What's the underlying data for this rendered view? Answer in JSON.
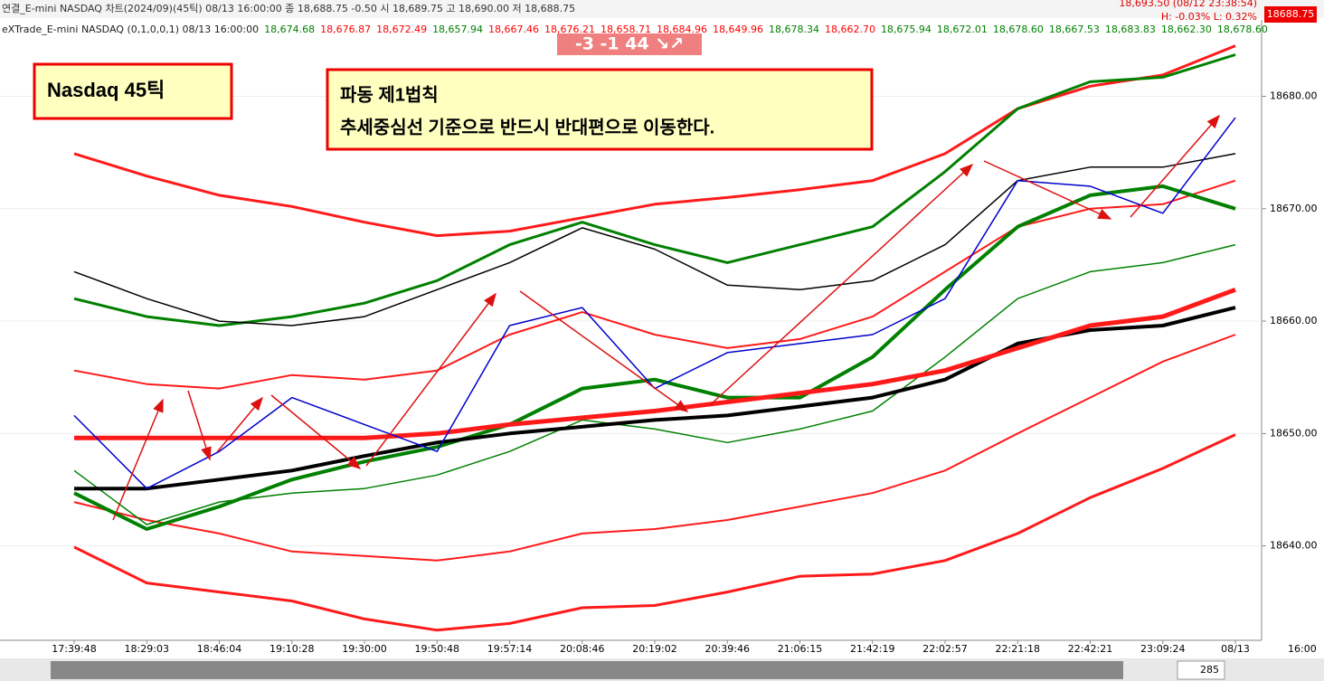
{
  "header": {
    "info_bar": "연결_E-mini NASDAQ 차트(2024/09)(45틱) 08/13 16:00:00  종 18,688.75  -0.50  시 18,689.75  고 18,690.00  저 18,688.75",
    "high_info": "18,693.50 (08/12 23:38:54)",
    "range_info": "H: -0.03%  L: 0.32%",
    "study_name": "eXTrade_E-mini NASDAQ  (0,1,0,0,1) 08/13 16:00:00",
    "study_values": [
      {
        "text": "18,674.68",
        "color": "#008000"
      },
      {
        "text": "18,676.87",
        "color": "#ff0000"
      },
      {
        "text": "18,672.49",
        "color": "#ff0000"
      },
      {
        "text": "18,657.94",
        "color": "#008000"
      },
      {
        "text": "18,667.46",
        "color": "#ff0000"
      },
      {
        "text": "18,676.21",
        "color": "#ff0000"
      },
      {
        "text": "18,658.71",
        "color": "#ff0000"
      },
      {
        "text": "18,684.96",
        "color": "#ff0000"
      },
      {
        "text": "18,649.96",
        "color": "#ff0000"
      },
      {
        "text": "18,678.34",
        "color": "#008000"
      },
      {
        "text": "18,662.70",
        "color": "#ff0000"
      },
      {
        "text": "18,675.94",
        "color": "#008000"
      },
      {
        "text": "18,672.01",
        "color": "#008000"
      },
      {
        "text": "18,678.60",
        "color": "#008000"
      },
      {
        "text": "18,667.53",
        "color": "#008000"
      },
      {
        "text": "18,683.83",
        "color": "#008000"
      },
      {
        "text": "18,662.30",
        "color": "#008000"
      },
      {
        "text": "18,678.60",
        "color": "#008000"
      }
    ],
    "badge": "-3  -1  44 ↘↗"
  },
  "annotations": {
    "label": "Nasdaq 45틱",
    "rule_title": "파동 제1법칙",
    "rule_text": "추세중심선 기준으로 반드시 반대편으로 이동한다."
  },
  "footer": {
    "time": "16:00",
    "count": "285"
  },
  "chart_data": {
    "type": "line",
    "last_price": "18688.75",
    "categories": [
      "17:39:48",
      "18:29:03",
      "18:46:04",
      "19:10:28",
      "19:30:00",
      "19:50:48",
      "19:57:14",
      "20:08:46",
      "20:19:02",
      "20:39:46",
      "21:06:15",
      "21:42:19",
      "22:02:57",
      "22:21:18",
      "22:42:21",
      "23:09:24",
      "08/13"
    ],
    "ylim": [
      18631.6,
      18686.8
    ],
    "yticks": [
      {
        "value": 18640,
        "label": "18640.00"
      },
      {
        "value": 18650,
        "label": "18650.00"
      },
      {
        "value": 18660,
        "label": "18660.00"
      },
      {
        "value": 18670,
        "label": "18670.00"
      },
      {
        "value": 18680,
        "label": "18680.00"
      }
    ],
    "series": [
      {
        "color": "#ff1a1a",
        "width": 3,
        "values": [
          18674.9,
          18672.9,
          18671.2,
          18670.2,
          18668.8,
          18667.6,
          18668.0,
          18669.2,
          18670.4,
          18671.0,
          18671.7,
          18672.5,
          18674.9,
          18678.9,
          18680.9,
          18681.9,
          18684.5
        ]
      },
      {
        "color": "#ff1a1a",
        "width": 3,
        "values": [
          18639.9,
          18636.7,
          18635.9,
          18635.1,
          18633.5,
          18632.5,
          18633.1,
          18634.5,
          18634.7,
          18635.9,
          18637.3,
          18637.5,
          18638.7,
          18641.1,
          18644.3,
          18646.9,
          18649.9
        ]
      },
      {
        "color": "#ff1a1a",
        "width": 2,
        "values": [
          18643.9,
          18642.3,
          18641.1,
          18639.5,
          18639.1,
          18638.7,
          18639.5,
          18641.1,
          18641.5,
          18642.3,
          18643.5,
          18644.7,
          18646.7,
          18650.0,
          18653.2,
          18656.4,
          18658.8
        ]
      },
      {
        "color": "#008000",
        "width": 3,
        "values": [
          18662.0,
          18660.4,
          18659.6,
          18660.4,
          18661.6,
          18663.6,
          18666.8,
          18668.8,
          18666.8,
          18665.2,
          18666.8,
          18668.4,
          18673.3,
          18678.9,
          18681.3,
          18681.7,
          18683.7
        ]
      },
      {
        "color": "#000000",
        "width": 1.5,
        "values": [
          18664.4,
          18662.0,
          18660.0,
          18659.6,
          18660.4,
          18662.8,
          18665.2,
          18668.3,
          18666.4,
          18663.2,
          18662.8,
          18663.6,
          18666.8,
          18672.5,
          18673.7,
          18673.7,
          18674.9
        ]
      },
      {
        "color": "#ff1a1a",
        "width": 2,
        "values": [
          18655.6,
          18654.4,
          18654.0,
          18655.2,
          18654.8,
          18655.6,
          18658.8,
          18660.8,
          18658.8,
          18657.6,
          18658.4,
          18660.4,
          18664.4,
          18668.4,
          18670.0,
          18670.4,
          18672.5
        ]
      },
      {
        "color": "#008000",
        "width": 1.5,
        "values": [
          18646.7,
          18641.9,
          18643.9,
          18644.7,
          18645.1,
          18646.3,
          18648.4,
          18651.2,
          18650.4,
          18649.2,
          18650.4,
          18652.0,
          18656.8,
          18662.0,
          18664.4,
          18665.2,
          18666.8
        ]
      },
      {
        "color": "#008000",
        "width": 4,
        "values": [
          18644.7,
          18641.5,
          18643.5,
          18645.9,
          18647.5,
          18648.8,
          18650.8,
          18654.0,
          18654.8,
          18653.2,
          18653.2,
          18656.8,
          18662.8,
          18668.4,
          18671.2,
          18672.0,
          18670.0
        ]
      },
      {
        "color": "#000000",
        "width": 4,
        "values": [
          18645.1,
          18645.1,
          18645.9,
          18646.7,
          18648.0,
          18649.2,
          18650.0,
          18650.6,
          18651.2,
          18651.6,
          18652.4,
          18653.2,
          18654.8,
          18658.0,
          18659.2,
          18659.6,
          18661.2
        ]
      },
      {
        "color": "#ff1a1a",
        "width": 5,
        "values": [
          18649.6,
          18649.6,
          18649.6,
          18649.6,
          18649.6,
          18650.0,
          18650.8,
          18651.4,
          18652.0,
          18652.8,
          18653.6,
          18654.4,
          18655.6,
          18657.6,
          18659.6,
          18660.4,
          18662.8
        ]
      },
      {
        "color": "#0000cc",
        "width": 1.5,
        "values": [
          18651.6,
          18645.1,
          18648.4,
          18653.2,
          18650.8,
          18648.4,
          18659.6,
          18661.2,
          18654.0,
          18657.2,
          18658.0,
          18658.8,
          18662.0,
          18672.5,
          18672.0,
          18669.6,
          18678.1
        ]
      }
    ]
  }
}
